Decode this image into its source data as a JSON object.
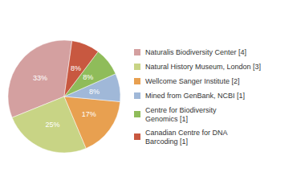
{
  "chart_data": {
    "type": "pie",
    "categories": [
      "Naturalis Biodiversity Center [4]",
      "Natural History Museum, London [3]",
      "Wellcome Sanger Institute [2]",
      "Mined from GenBank, NCBI [1]",
      "Centre for Biodiversity\nGenomics [1]",
      "Canadian Centre for DNA\nBarcoding [1]"
    ],
    "values": [
      33,
      25,
      17,
      8,
      8,
      8
    ],
    "value_labels": [
      "33%",
      "25%",
      "17%",
      "8%",
      "8%",
      "8%"
    ],
    "colors": [
      "#d4a0a0",
      "#c8d485",
      "#e8a050",
      "#a0b8d8",
      "#8fbc5a",
      "#c85840"
    ],
    "data_labels": true,
    "legend": "right"
  }
}
